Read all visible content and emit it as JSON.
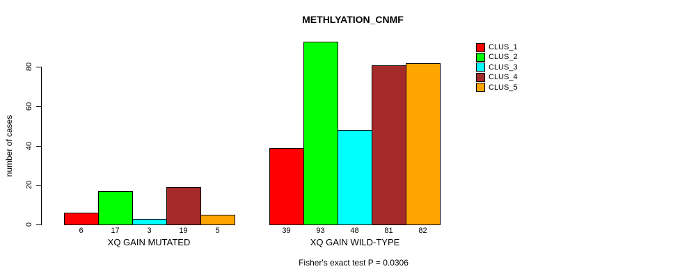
{
  "chart_data": {
    "type": "bar",
    "title": "METHLYATION_CNMF",
    "xlabel": "",
    "ylabel": "number of cases",
    "categories": [
      "XQ GAIN MUTATED",
      "XQ GAIN WILD-TYPE"
    ],
    "series": [
      {
        "name": "CLUS_1",
        "color": "#ff0000",
        "values": [
          6,
          39
        ]
      },
      {
        "name": "CLUS_2",
        "color": "#00ff00",
        "values": [
          17,
          93
        ]
      },
      {
        "name": "CLUS_3",
        "color": "#00ffff",
        "values": [
          3,
          48
        ]
      },
      {
        "name": "CLUS_4",
        "color": "#a52a2a",
        "values": [
          19,
          81
        ]
      },
      {
        "name": "CLUS_5",
        "color": "#ffa500",
        "values": [
          5,
          82
        ]
      }
    ],
    "bar_value_labels": [
      [
        "6",
        "17",
        "3",
        "19",
        "5"
      ],
      [
        "39",
        "93",
        "48",
        "81",
        "82"
      ]
    ],
    "yticks": [
      "0",
      "20",
      "40",
      "60",
      "80"
    ],
    "ylim": [
      0,
      93
    ],
    "grid": false,
    "legend_position": "top-right",
    "legend_entries": [
      "CLUS_1",
      "CLUS_2",
      "CLUS_3",
      "CLUS_4",
      "CLUS_5"
    ],
    "annotation": "Fisher's exact test P = 0.0306",
    "axis_color": "#000000",
    "bar_border_color": "#000000",
    "background_color": "#ffffff"
  }
}
